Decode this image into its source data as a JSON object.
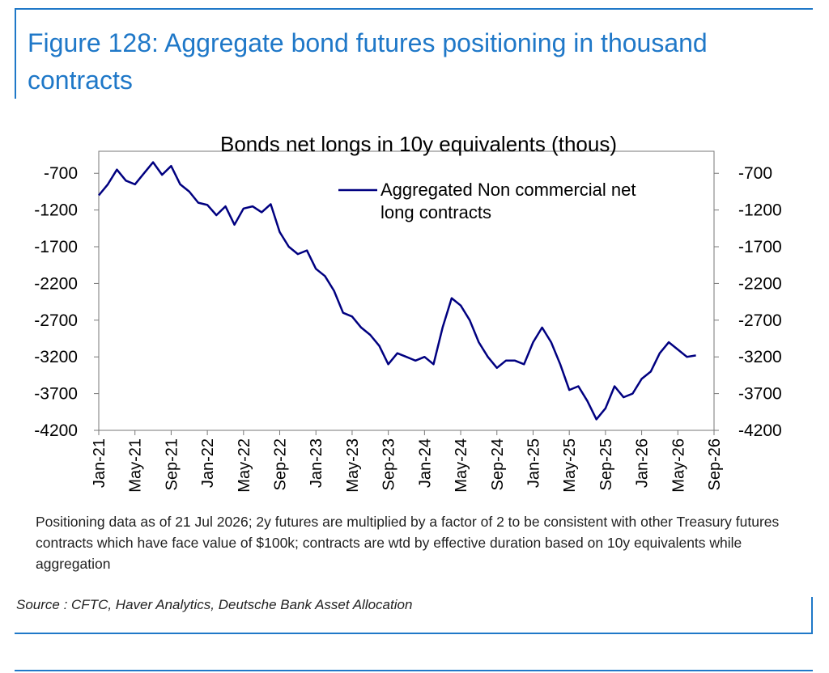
{
  "figure": {
    "title": "Figure 128: Aggregate bond futures positioning in thousand contracts"
  },
  "note": "Positioning data as of 21 Jul 2026; 2y futures are multiplied by a factor of 2 to be consistent with other Treasury futures contracts which have face value of $100k; contracts are wtd by effective duration based on 10y equivalents while aggregation",
  "source": "Source : CFTC, Haver Analytics, Deutsche Bank Asset Allocation",
  "colors": {
    "accent": "#1f78c8",
    "series": "#000080"
  },
  "chart_data": {
    "type": "line",
    "title": "Bonds net longs in 10y equivalents (thous)",
    "xlabel": "",
    "ylabel": "",
    "ylim": [
      -4200,
      -400
    ],
    "yticks": [
      -700,
      -1200,
      -1700,
      -2200,
      -2700,
      -3200,
      -3700,
      -4200
    ],
    "ytick_labels": [
      "-700",
      "-1200",
      "-1700",
      "-2200",
      "-2700",
      "-3200",
      "-3700",
      "-4200"
    ],
    "secondary_y_axis": true,
    "xlim": [
      "2021-01",
      "2026-09"
    ],
    "xtick_labels": [
      "Jan-21",
      "May-21",
      "Sep-21",
      "Jan-22",
      "May-22",
      "Sep-22",
      "Jan-23",
      "May-23",
      "Sep-23",
      "Jan-24",
      "May-24",
      "Sep-24",
      "Jan-25",
      "May-25",
      "Sep-25",
      "Jan-26",
      "May-26",
      "Sep-26"
    ],
    "legend": {
      "placement": "top-center",
      "entries": [
        "Aggregated Non commercial net long contracts"
      ]
    },
    "grid": false,
    "series": [
      {
        "name": "Aggregated Non commercial net long contracts",
        "x": [
          "2021-01",
          "2021-02",
          "2021-03",
          "2021-04",
          "2021-05",
          "2021-06",
          "2021-07",
          "2021-08",
          "2021-09",
          "2021-10",
          "2021-11",
          "2021-12",
          "2022-01",
          "2022-02",
          "2022-03",
          "2022-04",
          "2022-05",
          "2022-06",
          "2022-07",
          "2022-08",
          "2022-09",
          "2022-10",
          "2022-11",
          "2022-12",
          "2023-01",
          "2023-02",
          "2023-03",
          "2023-04",
          "2023-05",
          "2023-06",
          "2023-07",
          "2023-08",
          "2023-09",
          "2023-10",
          "2023-11",
          "2023-12",
          "2024-01",
          "2024-02",
          "2024-03",
          "2024-04",
          "2024-05",
          "2024-06",
          "2024-07",
          "2024-08",
          "2024-09",
          "2024-10",
          "2024-11",
          "2024-12",
          "2025-01",
          "2025-02",
          "2025-03",
          "2025-04",
          "2025-05",
          "2025-06",
          "2025-07",
          "2025-08",
          "2025-09",
          "2025-10",
          "2025-11",
          "2025-12",
          "2026-01",
          "2026-02",
          "2026-03",
          "2026-04",
          "2026-05",
          "2026-06",
          "2026-07"
        ],
        "values": [
          -1000,
          -850,
          -650,
          -800,
          -850,
          -700,
          -550,
          -720,
          -600,
          -850,
          -950,
          -1100,
          -1130,
          -1270,
          -1150,
          -1400,
          -1180,
          -1150,
          -1230,
          -1120,
          -1500,
          -1700,
          -1800,
          -1750,
          -2000,
          -2100,
          -2300,
          -2600,
          -2650,
          -2800,
          -2900,
          -3050,
          -3300,
          -3150,
          -3200,
          -3250,
          -3200,
          -3300,
          -2800,
          -2400,
          -2500,
          -2700,
          -3000,
          -3200,
          -3350,
          -3250,
          -3250,
          -3300,
          -3000,
          -2800,
          -3000,
          -3300,
          -3650,
          -3600,
          -3800,
          -4050,
          -3900,
          -3600,
          -3750,
          -3700,
          -3500,
          -3400,
          -3150,
          -3000,
          -3100,
          -3200,
          -3180
        ]
      }
    ]
  }
}
